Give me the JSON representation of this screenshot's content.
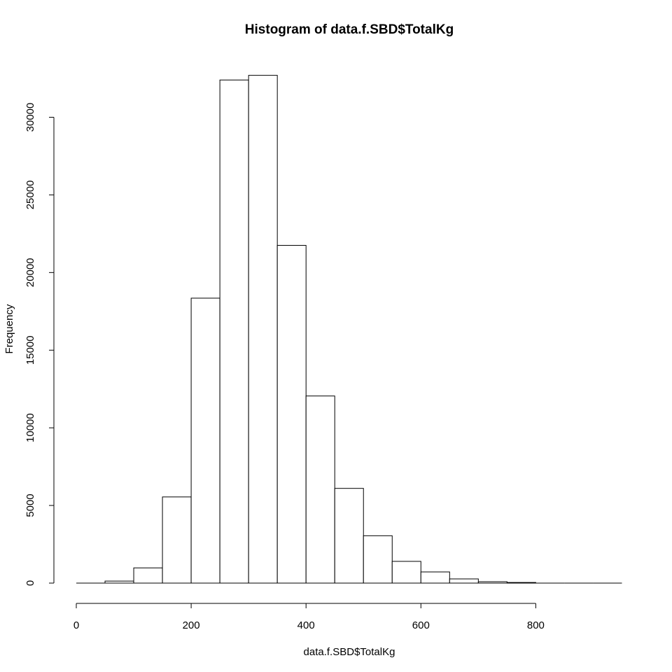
{
  "chart_data": {
    "type": "bar",
    "title": "Histogram of data.f.SBD$TotalKg",
    "xlabel": "data.f.SBD$TotalKg",
    "ylabel": "Frequency",
    "x_ticks": [
      0,
      200,
      400,
      600,
      800
    ],
    "y_ticks": [
      0,
      5000,
      10000,
      15000,
      20000,
      25000,
      30000
    ],
    "xlim": [
      0,
      950
    ],
    "ylim": [
      0,
      33000
    ],
    "bin_width": 50,
    "bins": [
      {
        "start": 0,
        "end": 50,
        "count": 0
      },
      {
        "start": 50,
        "end": 100,
        "count": 130
      },
      {
        "start": 100,
        "end": 150,
        "count": 980
      },
      {
        "start": 150,
        "end": 200,
        "count": 5550
      },
      {
        "start": 200,
        "end": 250,
        "count": 18350
      },
      {
        "start": 250,
        "end": 300,
        "count": 32400
      },
      {
        "start": 300,
        "end": 350,
        "count": 32700
      },
      {
        "start": 350,
        "end": 400,
        "count": 21750
      },
      {
        "start": 400,
        "end": 450,
        "count": 12050
      },
      {
        "start": 450,
        "end": 500,
        "count": 6100
      },
      {
        "start": 500,
        "end": 550,
        "count": 3050
      },
      {
        "start": 550,
        "end": 600,
        "count": 1400
      },
      {
        "start": 600,
        "end": 650,
        "count": 720
      },
      {
        "start": 650,
        "end": 700,
        "count": 270
      },
      {
        "start": 700,
        "end": 750,
        "count": 90
      },
      {
        "start": 750,
        "end": 800,
        "count": 40
      },
      {
        "start": 800,
        "end": 850,
        "count": 25
      },
      {
        "start": 850,
        "end": 900,
        "count": 0
      },
      {
        "start": 900,
        "end": 950,
        "count": 0
      }
    ],
    "grid": false,
    "legend": "none"
  }
}
